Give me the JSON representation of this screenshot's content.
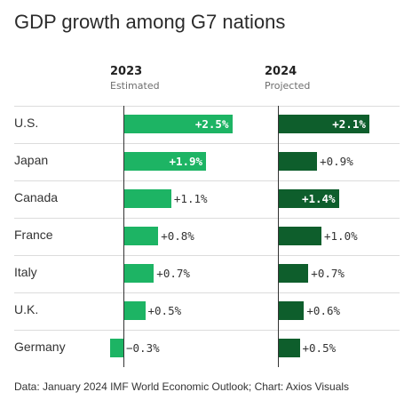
{
  "title": "GDP growth among G7 nations",
  "source": "Data: January 2024 IMF World Economic Outlook; Chart: Axios Visuals",
  "chart_data": {
    "type": "bar",
    "orientation": "horizontal",
    "categories": [
      "U.S.",
      "Japan",
      "Canada",
      "France",
      "Italy",
      "U.K.",
      "Germany"
    ],
    "series": [
      {
        "name": "2023",
        "subtitle": "Estimated",
        "color": "#1db464",
        "values": [
          2.5,
          1.9,
          1.1,
          0.8,
          0.7,
          0.5,
          -0.3
        ],
        "labels": [
          "+2.5%",
          "+1.9%",
          "+1.1%",
          "+0.8%",
          "+0.7%",
          "+0.5%",
          "−0.3%"
        ]
      },
      {
        "name": "2024",
        "subtitle": "Projected",
        "color": "#0e5e2c",
        "values": [
          2.1,
          0.9,
          1.4,
          1.0,
          0.7,
          0.6,
          0.5
        ],
        "labels": [
          "+2.1%",
          "+0.9%",
          "+1.4%",
          "+1.0%",
          "+0.7%",
          "+0.6%",
          "+0.5%"
        ]
      }
    ],
    "value_unit": "%",
    "grid": false,
    "legend": "column headers"
  }
}
